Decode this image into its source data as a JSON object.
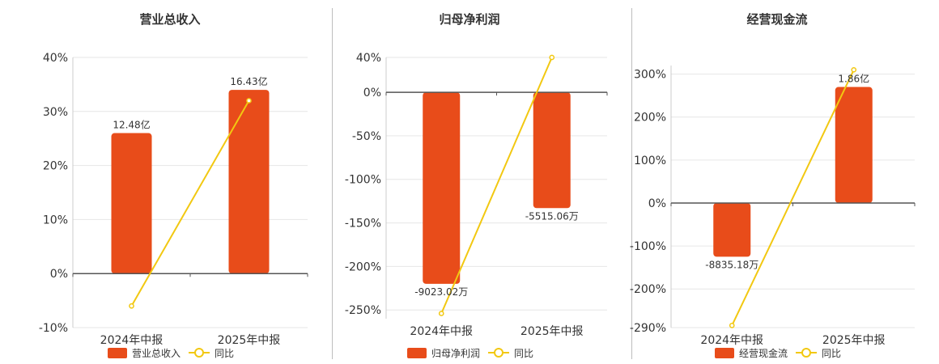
{
  "colors": {
    "bar": "#e84c1a",
    "line": "#f2c811",
    "grid": "#e6e6e6",
    "axis": "#555555"
  },
  "legend_line_label": "同比",
  "chart_data": [
    {
      "type": "bar",
      "title": "营业总收入",
      "categories": [
        "2024年中报",
        "2025年中报"
      ],
      "series": [
        {
          "name": "营业总收入",
          "type": "bar",
          "values": [
            26,
            34
          ],
          "labels": [
            "12.48亿",
            "16.43亿"
          ]
        },
        {
          "name": "同比",
          "type": "line",
          "values": [
            -6,
            32
          ]
        }
      ],
      "ylim": [
        -10,
        40
      ],
      "yticks": [
        40,
        30,
        20,
        10,
        0,
        -10
      ],
      "ytick_labels": [
        "40%",
        "30%",
        "20%",
        "10%",
        "0%",
        "-10%"
      ],
      "grid": true,
      "legend": "bottom"
    },
    {
      "type": "bar",
      "title": "归母净利润",
      "categories": [
        "2024年中报",
        "2025年中报"
      ],
      "series": [
        {
          "name": "归母净利润",
          "type": "bar",
          "values": [
            -220,
            -133
          ],
          "labels": [
            "-9023.02万",
            "-5515.06万"
          ]
        },
        {
          "name": "同比",
          "type": "line",
          "values": [
            -254,
            40
          ]
        }
      ],
      "ylim": [
        -260,
        40
      ],
      "yticks": [
        40,
        0,
        -50,
        -100,
        -150,
        -200,
        -250
      ],
      "ytick_labels": [
        "40%",
        "0%",
        "-50%",
        "-100%",
        "-150%",
        "-200%",
        "-250%"
      ],
      "grid": true,
      "legend": "bottom"
    },
    {
      "type": "bar",
      "title": "经营现金流",
      "categories": [
        "2024年中报",
        "2025年中报"
      ],
      "series": [
        {
          "name": "经营现金流",
          "type": "bar",
          "values": [
            -125,
            270
          ],
          "labels": [
            "-8835.18万",
            "1.86亿"
          ]
        },
        {
          "name": "同比",
          "type": "line",
          "values": [
            -285,
            310
          ]
        }
      ],
      "ylim": [
        -290,
        320
      ],
      "yticks": [
        300,
        200,
        100,
        0,
        -100,
        -200,
        -290
      ],
      "ytick_labels": [
        "300%",
        "200%",
        "100%",
        "0%",
        "-100%",
        "-200%",
        "-290%"
      ],
      "grid": true,
      "legend": "bottom"
    }
  ]
}
